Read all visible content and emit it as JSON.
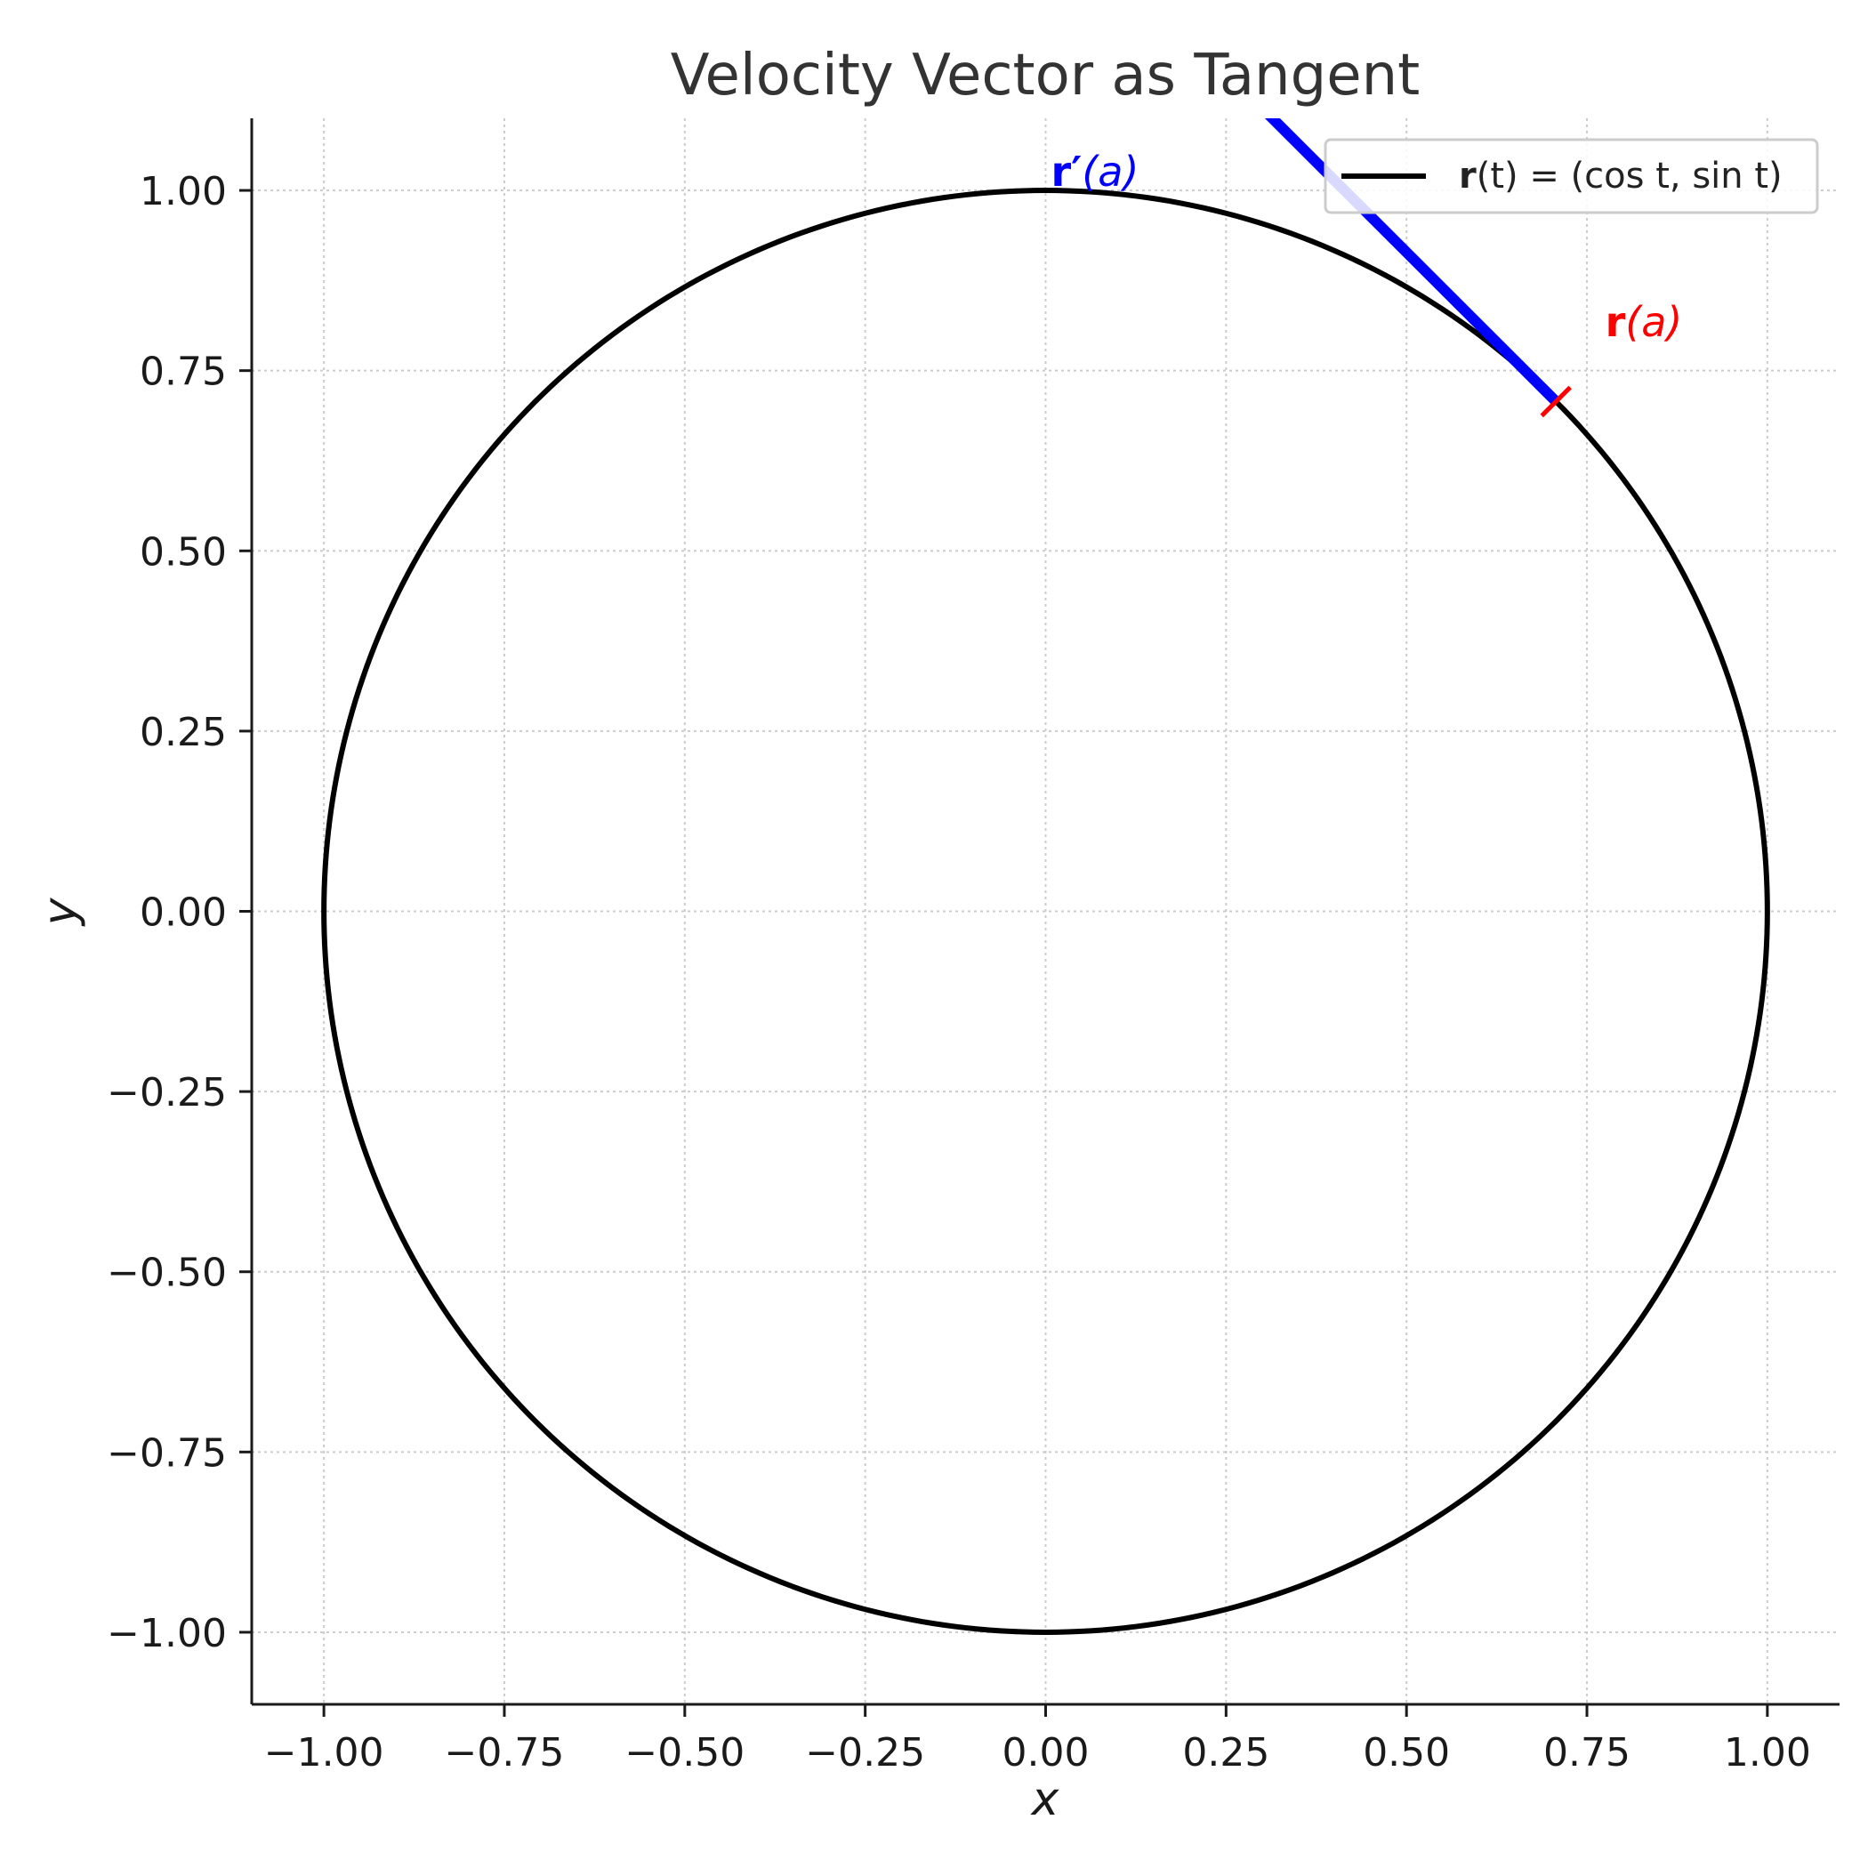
{
  "chart_data": {
    "type": "line",
    "title": "Velocity Vector as Tangent",
    "xlabel": "x",
    "ylabel": "y",
    "xlim": [
      -1.1,
      1.1
    ],
    "ylim": [
      -1.1,
      1.1
    ],
    "grid": true,
    "legend_position": "top-right",
    "xticks": [
      -1.0,
      -0.75,
      -0.5,
      -0.25,
      0.0,
      0.25,
      0.5,
      0.75,
      1.0
    ],
    "xtick_labels": [
      "−1.00",
      "−0.75",
      "−0.50",
      "−0.25",
      "0.00",
      "0.25",
      "0.50",
      "0.75",
      "1.00"
    ],
    "yticks": [
      1.0,
      0.75,
      0.5,
      0.25,
      0.0,
      -0.25,
      -0.5,
      -0.75,
      -1.0
    ],
    "ytick_labels": [
      "1.00",
      "0.75",
      "0.50",
      "0.25",
      "0.00",
      "−0.25",
      "−0.50",
      "−0.75",
      "−1.00"
    ],
    "series": [
      {
        "name": "r(t) = (cos t, sin t)",
        "kind": "parametric-circle",
        "center": [
          0,
          0
        ],
        "radius": 1,
        "color": "#000000"
      }
    ],
    "point": {
      "label": "r(a)",
      "x": 0.7071,
      "y": 0.7071,
      "color": "#ff0000",
      "marker": "tick"
    },
    "tangent_vector": {
      "label": "r′(a)",
      "from": [
        0.7071,
        0.7071
      ],
      "to": [
        0.2929,
        1.1213
      ],
      "color": "#0000ff"
    },
    "annotations": [
      {
        "bold": "r′",
        "rest": "(a)",
        "x": 0.0,
        "y": 1.0,
        "color": "#0000ff"
      },
      {
        "bold": "r",
        "rest": "(a)",
        "x": 0.8,
        "y": 0.8,
        "color": "#ff0000"
      }
    ],
    "legend": {
      "bold": "r",
      "rest": "(t) = (cos t, sin t)"
    }
  }
}
